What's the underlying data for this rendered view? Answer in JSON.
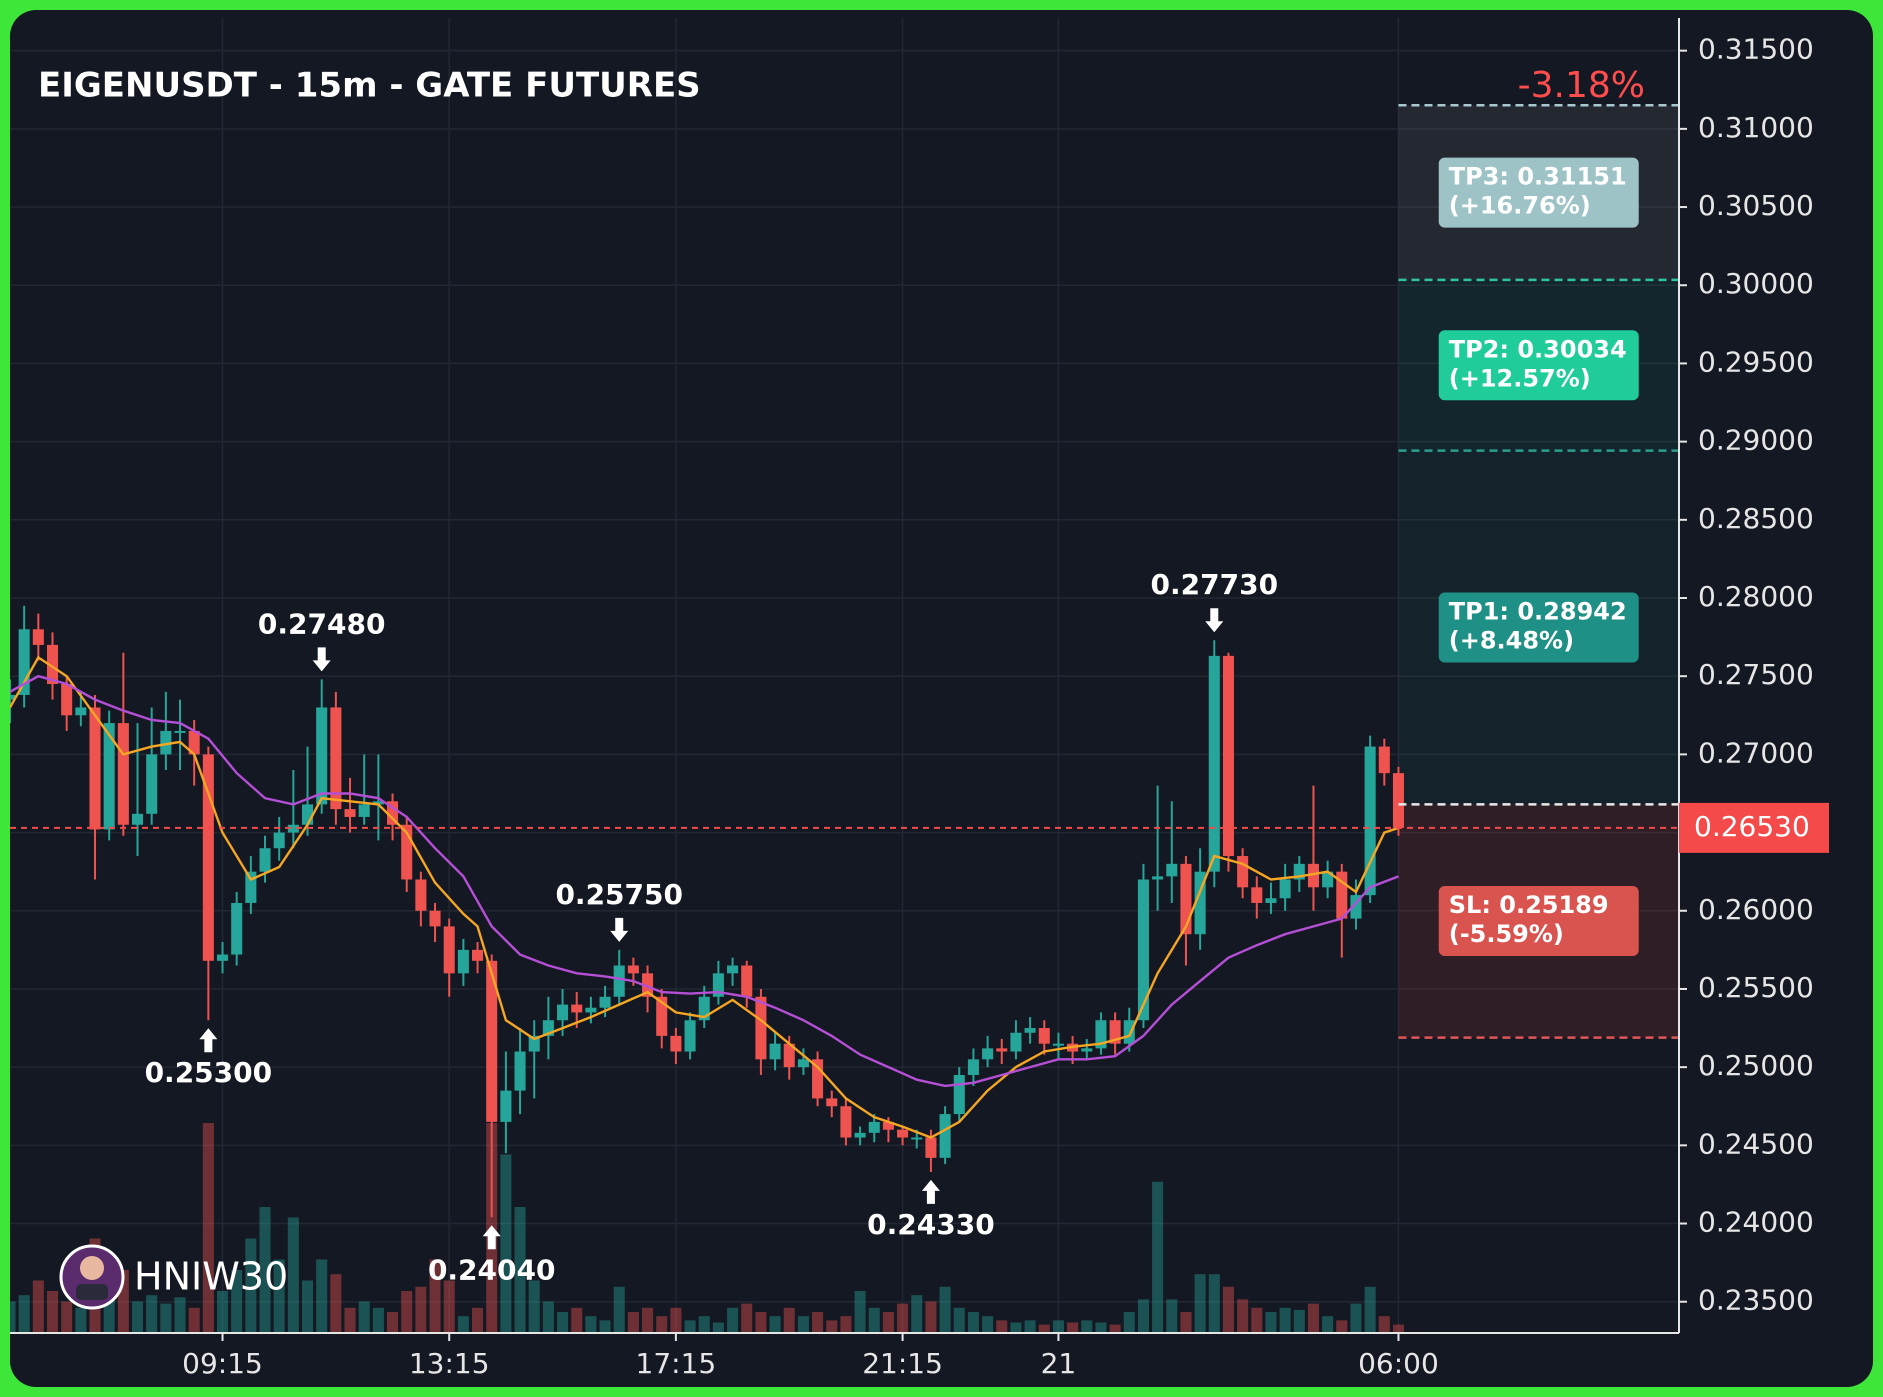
{
  "chart_data": {
    "type": "candlestick",
    "title": "EIGENUSDT - 15m - GATE FUTURES",
    "change_label": "-3.18%",
    "watermark": "HNIW30",
    "xlim": [
      0,
      117.8
    ],
    "xticks": [
      {
        "value": 15,
        "label": "09:15"
      },
      {
        "value": 31,
        "label": "13:15"
      },
      {
        "value": 47,
        "label": "17:15"
      },
      {
        "value": 63,
        "label": "21:15"
      },
      {
        "value": 74,
        "label": "21"
      },
      {
        "value": 98,
        "label": "06:00"
      }
    ],
    "ylim": [
      0.233,
      0.3176
    ],
    "yticks": [
      {
        "value": 0.235,
        "label": "0.23500"
      },
      {
        "value": 0.24,
        "label": "0.24000"
      },
      {
        "value": 0.245,
        "label": "0.24500"
      },
      {
        "value": 0.25,
        "label": "0.25000"
      },
      {
        "value": 0.255,
        "label": "0.25500"
      },
      {
        "value": 0.26,
        "label": "0.26000"
      },
      {
        "value": 0.265,
        "label": "0.26500"
      },
      {
        "value": 0.27,
        "label": "0.27000"
      },
      {
        "value": 0.275,
        "label": "0.27500"
      },
      {
        "value": 0.28,
        "label": "0.28000"
      },
      {
        "value": 0.285,
        "label": "0.28500"
      },
      {
        "value": 0.29,
        "label": "0.29000"
      },
      {
        "value": 0.295,
        "label": "0.29500"
      },
      {
        "value": 0.3,
        "label": "0.30000"
      },
      {
        "value": 0.305,
        "label": "0.30500"
      },
      {
        "value": 0.31,
        "label": "0.31000"
      },
      {
        "value": 0.315,
        "label": "0.31500"
      }
    ],
    "grid": true,
    "up_color": "#26a69a",
    "down_color": "#ef5350",
    "open": [
      0.2735,
      0.2738,
      0.278,
      0.277,
      0.2745,
      0.2725,
      0.273,
      0.2652,
      0.272,
      0.2655,
      0.2662,
      0.27,
      0.2715,
      0.2715,
      0.27,
      0.2568,
      0.2572,
      0.2605,
      0.2625,
      0.264,
      0.265,
      0.2655,
      0.2668,
      0.273,
      0.2665,
      0.266,
      0.2668,
      0.267,
      0.2655,
      0.262,
      0.26,
      0.259,
      0.256,
      0.2575,
      0.2568,
      0.2465,
      0.2485,
      0.251,
      0.252,
      0.253,
      0.254,
      0.2535,
      0.2538,
      0.2545,
      0.2565,
      0.256,
      0.2545,
      0.252,
      0.251,
      0.253,
      0.2545,
      0.256,
      0.2565,
      0.2545,
      0.2505,
      0.2515,
      0.25,
      0.2505,
      0.248,
      0.2475,
      0.2455,
      0.2458,
      0.2465,
      0.246,
      0.2455,
      0.2455,
      0.2442,
      0.247,
      0.2495,
      0.2505,
      0.2512,
      0.251,
      0.2522,
      0.2525,
      0.2515,
      0.2515,
      0.251,
      0.2512,
      0.253,
      0.2515,
      0.253,
      0.262,
      0.2622,
      0.263,
      0.2585,
      0.2625,
      0.2763,
      0.2635,
      0.2615,
      0.2605,
      0.2608,
      0.262,
      0.263,
      0.2615,
      0.2625,
      0.2595,
      0.261,
      0.2705,
      0.2688
    ],
    "high": [
      0.2748,
      0.2795,
      0.279,
      0.2778,
      0.275,
      0.274,
      0.2738,
      0.2728,
      0.2765,
      0.272,
      0.273,
      0.274,
      0.2735,
      0.2722,
      0.2705,
      0.258,
      0.2612,
      0.2635,
      0.2648,
      0.266,
      0.269,
      0.2705,
      0.2748,
      0.274,
      0.2685,
      0.27,
      0.27,
      0.2675,
      0.266,
      0.2625,
      0.2605,
      0.2595,
      0.2582,
      0.258,
      0.2572,
      0.251,
      0.2525,
      0.253,
      0.2545,
      0.255,
      0.2548,
      0.2545,
      0.2552,
      0.2575,
      0.257,
      0.2565,
      0.255,
      0.2525,
      0.2535,
      0.2552,
      0.2568,
      0.257,
      0.2568,
      0.255,
      0.2522,
      0.252,
      0.2512,
      0.251,
      0.2485,
      0.248,
      0.2462,
      0.247,
      0.2468,
      0.2462,
      0.246,
      0.246,
      0.2475,
      0.25,
      0.2512,
      0.252,
      0.2518,
      0.253,
      0.2532,
      0.253,
      0.2522,
      0.252,
      0.2518,
      0.2535,
      0.2535,
      0.2538,
      0.263,
      0.268,
      0.267,
      0.2635,
      0.264,
      0.2773,
      0.2765,
      0.264,
      0.2622,
      0.2618,
      0.263,
      0.2635,
      0.268,
      0.2632,
      0.263,
      0.262,
      0.2712,
      0.271,
      0.2692
    ],
    "low": [
      0.272,
      0.273,
      0.276,
      0.2735,
      0.2715,
      0.2718,
      0.262,
      0.2645,
      0.2648,
      0.2635,
      0.2655,
      0.269,
      0.269,
      0.268,
      0.253,
      0.256,
      0.2565,
      0.2598,
      0.2618,
      0.2632,
      0.264,
      0.2648,
      0.2662,
      0.2655,
      0.265,
      0.2655,
      0.2645,
      0.2645,
      0.2612,
      0.259,
      0.258,
      0.2545,
      0.2552,
      0.256,
      0.2404,
      0.2445,
      0.247,
      0.248,
      0.2505,
      0.252,
      0.2525,
      0.2528,
      0.2532,
      0.254,
      0.2552,
      0.2535,
      0.2512,
      0.2502,
      0.2505,
      0.2525,
      0.254,
      0.2552,
      0.2538,
      0.2495,
      0.2498,
      0.2492,
      0.2495,
      0.2475,
      0.2468,
      0.245,
      0.245,
      0.2452,
      0.2452,
      0.245,
      0.2448,
      0.2433,
      0.2438,
      0.2465,
      0.2488,
      0.25,
      0.2502,
      0.2505,
      0.2515,
      0.2508,
      0.2505,
      0.2502,
      0.2505,
      0.2508,
      0.2508,
      0.251,
      0.2525,
      0.26,
      0.2605,
      0.2565,
      0.2575,
      0.2615,
      0.2625,
      0.2608,
      0.2595,
      0.2598,
      0.26,
      0.2612,
      0.26,
      0.2608,
      0.257,
      0.2588,
      0.2605,
      0.268,
      0.2648
    ],
    "close": [
      0.2738,
      0.278,
      0.277,
      0.2745,
      0.2725,
      0.273,
      0.2652,
      0.272,
      0.2655,
      0.2662,
      0.27,
      0.2715,
      0.2715,
      0.27,
      0.2568,
      0.2572,
      0.2605,
      0.2625,
      0.264,
      0.265,
      0.2655,
      0.2668,
      0.273,
      0.2665,
      0.266,
      0.2668,
      0.267,
      0.2655,
      0.262,
      0.26,
      0.259,
      0.256,
      0.2575,
      0.2568,
      0.2465,
      0.2485,
      0.251,
      0.252,
      0.253,
      0.254,
      0.2535,
      0.2538,
      0.2545,
      0.2565,
      0.256,
      0.2545,
      0.252,
      0.251,
      0.253,
      0.2545,
      0.256,
      0.2565,
      0.2545,
      0.2505,
      0.2515,
      0.25,
      0.2505,
      0.248,
      0.2475,
      0.2455,
      0.2458,
      0.2465,
      0.246,
      0.2455,
      0.2455,
      0.2442,
      0.247,
      0.2495,
      0.2505,
      0.2512,
      0.251,
      0.2522,
      0.2525,
      0.2515,
      0.2515,
      0.251,
      0.2512,
      0.253,
      0.2515,
      0.253,
      0.262,
      0.2622,
      0.263,
      0.2585,
      0.2625,
      0.2763,
      0.2635,
      0.2615,
      0.2605,
      0.2608,
      0.262,
      0.263,
      0.2615,
      0.2625,
      0.2595,
      0.261,
      0.2705,
      0.2688,
      0.2653
    ],
    "volume": [
      15,
      18,
      25,
      20,
      15,
      12,
      45,
      25,
      30,
      15,
      18,
      14,
      17,
      12,
      100,
      20,
      30,
      45,
      60,
      35,
      55,
      25,
      35,
      28,
      12,
      15,
      12,
      10,
      20,
      22,
      35,
      25,
      8,
      12,
      100,
      85,
      60,
      25,
      15,
      10,
      12,
      8,
      6,
      22,
      10,
      12,
      8,
      12,
      6,
      8,
      5,
      12,
      14,
      10,
      8,
      12,
      8,
      10,
      6,
      8,
      20,
      12,
      10,
      14,
      18,
      15,
      22,
      12,
      10,
      8,
      6,
      5,
      6,
      4,
      6,
      5,
      6,
      5,
      4,
      10,
      16,
      72,
      16,
      10,
      28,
      28,
      22,
      16,
      12,
      10,
      12,
      11,
      14,
      8,
      6,
      14,
      22,
      8,
      4
    ],
    "volume_lim": [
      0,
      100
    ],
    "lines": [
      {
        "color": "#f5a623",
        "x": [
          0,
          2,
          4,
          6,
          8,
          10,
          12,
          13,
          15,
          17,
          19,
          21,
          22,
          24,
          26,
          28,
          30,
          32,
          33,
          35,
          37,
          39,
          41,
          43,
          45,
          47,
          49,
          51,
          53,
          55,
          57,
          59,
          61,
          63,
          65,
          67,
          69,
          71,
          73,
          75,
          77,
          79,
          81,
          83,
          85,
          87,
          89,
          91,
          93,
          95,
          97,
          98
        ],
        "values": [
          0.273,
          0.2762,
          0.275,
          0.2725,
          0.27,
          0.2705,
          0.2708,
          0.27,
          0.265,
          0.262,
          0.2628,
          0.2655,
          0.2672,
          0.267,
          0.2668,
          0.265,
          0.2618,
          0.2598,
          0.259,
          0.253,
          0.2518,
          0.2525,
          0.2532,
          0.254,
          0.2548,
          0.2535,
          0.2532,
          0.2543,
          0.253,
          0.2515,
          0.25,
          0.248,
          0.2468,
          0.2462,
          0.2455,
          0.2465,
          0.2485,
          0.25,
          0.251,
          0.2513,
          0.2515,
          0.252,
          0.256,
          0.259,
          0.2635,
          0.263,
          0.262,
          0.2622,
          0.2625,
          0.2612,
          0.265,
          0.2653
        ]
      },
      {
        "color": "#b44fd6",
        "x": [
          0,
          2,
          4,
          6,
          8,
          10,
          12,
          14,
          16,
          18,
          20,
          22,
          24,
          26,
          28,
          30,
          32,
          34,
          36,
          38,
          40,
          42,
          44,
          46,
          48,
          50,
          52,
          54,
          56,
          58,
          60,
          62,
          64,
          66,
          68,
          70,
          72,
          74,
          76,
          78,
          80,
          82,
          84,
          86,
          88,
          90,
          92,
          94,
          96,
          98
        ],
        "values": [
          0.274,
          0.275,
          0.2745,
          0.2735,
          0.2728,
          0.2722,
          0.272,
          0.271,
          0.2688,
          0.2672,
          0.2668,
          0.2675,
          0.2675,
          0.2672,
          0.266,
          0.264,
          0.2622,
          0.259,
          0.2572,
          0.2565,
          0.256,
          0.2558,
          0.2555,
          0.2548,
          0.2547,
          0.2548,
          0.2545,
          0.2538,
          0.253,
          0.252,
          0.2508,
          0.25,
          0.2492,
          0.2488,
          0.249,
          0.2495,
          0.25,
          0.2505,
          0.2505,
          0.2507,
          0.252,
          0.254,
          0.2555,
          0.257,
          0.2578,
          0.2585,
          0.259,
          0.2595,
          0.2615,
          0.2622
        ]
      }
    ],
    "annotations": [
      {
        "index": 14,
        "value": 0.253,
        "label": "0.25300",
        "side": "low"
      },
      {
        "index": 22,
        "value": 0.2748,
        "label": "0.27480",
        "side": "high"
      },
      {
        "index": 34,
        "value": 0.2404,
        "label": "0.24040",
        "side": "low"
      },
      {
        "index": 43,
        "value": 0.2575,
        "label": "0.25750",
        "side": "high"
      },
      {
        "index": 65,
        "value": 0.2433,
        "label": "0.24330",
        "side": "low"
      },
      {
        "index": 85,
        "value": 0.2773,
        "label": "0.27730",
        "side": "high"
      }
    ],
    "position": {
      "from_x": 98,
      "entry": 0.2668,
      "entry_color": "#e8e8e8",
      "levels": [
        {
          "label": "TP3: 0.31151",
          "note": "(+16.76%)",
          "value": 0.31151,
          "color": "#9ec3c6",
          "line_color": "#a9c7cf",
          "zone_color": "rgba(255,255,255,0.07)"
        },
        {
          "label": "TP2: 0.30034",
          "note": "(+12.57%)",
          "value": 0.30034,
          "color": "#1fcc9a",
          "line_color": "#2ec4a0",
          "zone_color": "rgba(30,170,150,0.10)"
        },
        {
          "label": "TP1: 0.28942",
          "note": "(+8.48%)",
          "value": 0.28942,
          "color": "#1f9085",
          "line_color": "#2a9d8f",
          "zone_color": "rgba(30,140,130,0.10)"
        },
        {
          "label": "SL: 0.25189",
          "note": "(-5.59%)",
          "value": 0.25189,
          "color": "#d9534f",
          "line_color": "#e05555",
          "zone_color": "rgba(200,60,60,0.16)"
        }
      ]
    },
    "last_price": {
      "value": 0.2653,
      "label": "0.26530",
      "color": "#f44a4a"
    }
  }
}
